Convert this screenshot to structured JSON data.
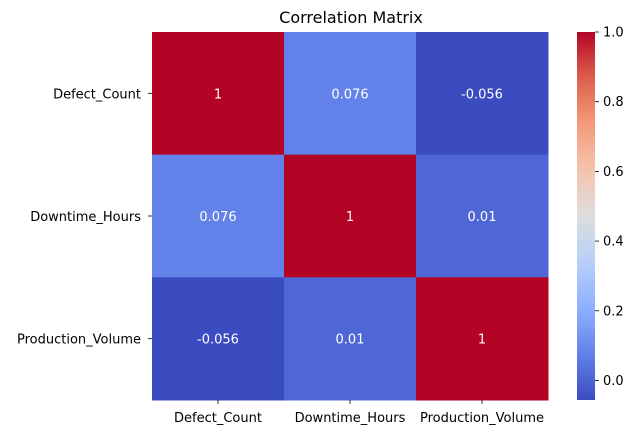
{
  "chart_data": {
    "type": "heatmap",
    "title": "Correlation Matrix",
    "x_categories": [
      "Defect_Count",
      "Downtime_Hours",
      "Production_Volume"
    ],
    "y_categories": [
      "Defect_Count",
      "Downtime_Hours",
      "Production_Volume"
    ],
    "values": [
      [
        1,
        0.076,
        -0.056
      ],
      [
        0.076,
        1,
        0.01
      ],
      [
        -0.056,
        0.01,
        1
      ]
    ],
    "annotations": [
      [
        "1",
        "0.076",
        "-0.056"
      ],
      [
        "0.076",
        "1",
        "0.01"
      ],
      [
        "-0.056",
        "0.01",
        "1"
      ]
    ],
    "colormap": "coolwarm",
    "colorbar": {
      "range": [
        -0.056,
        1.0
      ],
      "ticks": [
        0.0,
        0.2,
        0.4,
        0.6,
        0.8,
        1.0
      ],
      "tick_labels": [
        "0.0",
        "0.2",
        "0.4",
        "0.6",
        "0.8",
        "1.0"
      ]
    },
    "xlabel": "",
    "ylabel": ""
  },
  "colors": {
    "annotation_text": "#ffffff",
    "axis_text": "#000000"
  }
}
